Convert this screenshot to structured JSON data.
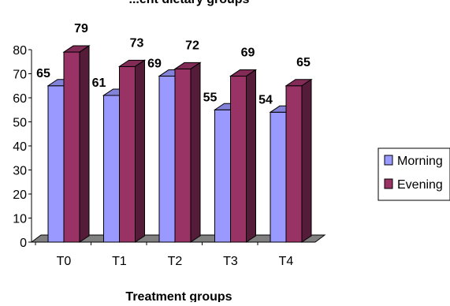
{
  "chart_data": {
    "type": "bar",
    "title": "...ent dietary groups",
    "xlabel": "Treatment groups",
    "ylabel": "",
    "categories": [
      "T0",
      "T1",
      "T2",
      "T3",
      "T4"
    ],
    "series": [
      {
        "name": "Morning",
        "color": "#9999FF",
        "values": [
          65,
          61,
          69,
          55,
          54
        ]
      },
      {
        "name": "Evening",
        "color": "#993366",
        "values": [
          79,
          73,
          72,
          69,
          65
        ]
      }
    ],
    "ylim": [
      0,
      80
    ],
    "yticks": [
      0,
      10,
      20,
      30,
      40,
      50,
      60,
      70,
      80
    ],
    "grid": false,
    "legend_position": "right",
    "style": "3d-clustered-column",
    "floor_color": "#808080"
  }
}
